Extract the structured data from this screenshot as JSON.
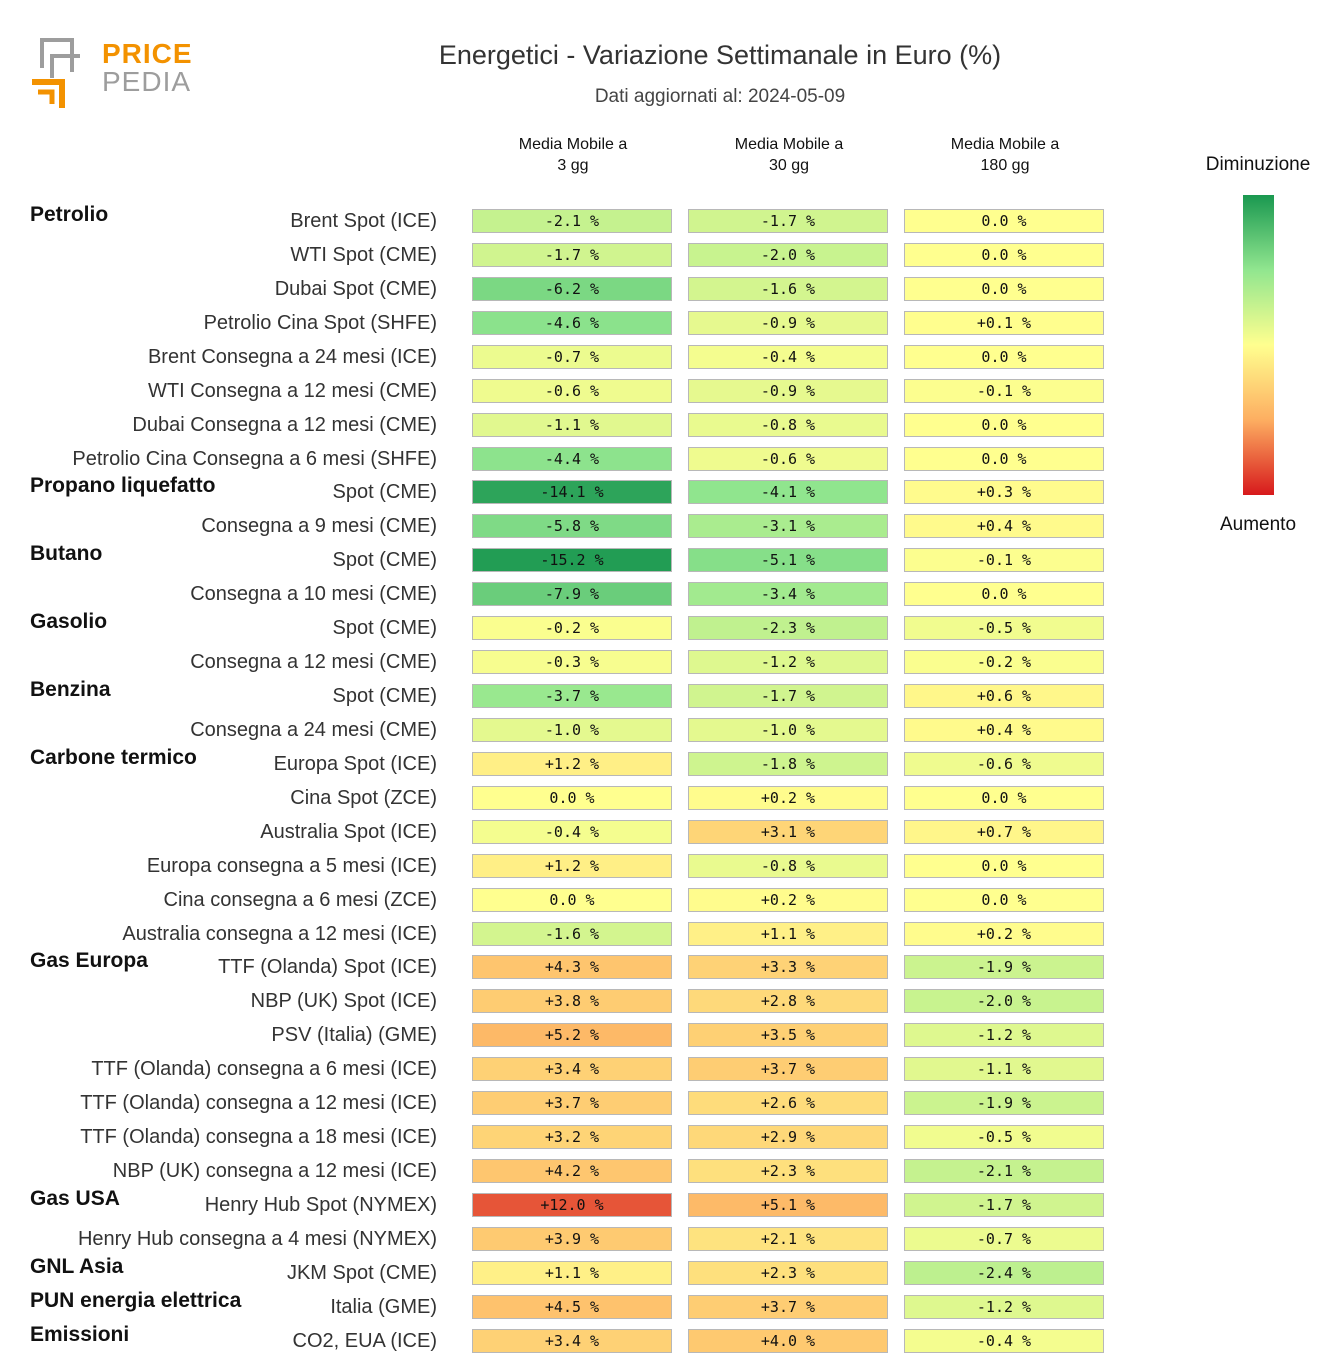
{
  "brand": {
    "line1": "PRICE",
    "line2": "PEDIA",
    "colors": {
      "orange": "#f39200",
      "gray": "#9d9d9d"
    }
  },
  "header": {
    "title": "Energetici - Variazione Settimanale in Euro (%)",
    "subtitle": "Dati aggiornati al: 2024-05-09"
  },
  "legend": {
    "top": "Diminuzione",
    "bottom": "Aumento",
    "colors": [
      "#1a9850",
      "#91e68f",
      "#ffff8f",
      "#fdae61",
      "#d7191c"
    ]
  },
  "chart_data": {
    "type": "heatmap",
    "title": "Energetici - Variazione Settimanale in Euro (%)",
    "columns": [
      {
        "line1": "Media Mobile a",
        "line2": "3 gg"
      },
      {
        "line1": "Media Mobile a",
        "line2": "30 gg"
      },
      {
        "line1": "Media Mobile a",
        "line2": "180 gg"
      }
    ],
    "value_suffix": " %",
    "groups": [
      {
        "name": "Petrolio",
        "rows": [
          {
            "label": "Brent Spot (ICE)",
            "values": [
              -2.1,
              -1.7,
              0.0
            ]
          },
          {
            "label": "WTI Spot (CME)",
            "values": [
              -1.7,
              -2.0,
              0.0
            ]
          },
          {
            "label": "Dubai Spot (CME)",
            "values": [
              -6.2,
              -1.6,
              0.0
            ]
          },
          {
            "label": "Petrolio Cina Spot (SHFE)",
            "values": [
              -4.6,
              -0.9,
              0.1
            ]
          },
          {
            "label": "Brent Consegna a 24 mesi (ICE)",
            "values": [
              -0.7,
              -0.4,
              0.0
            ]
          },
          {
            "label": "WTI Consegna a 12 mesi (CME)",
            "values": [
              -0.6,
              -0.9,
              -0.1
            ]
          },
          {
            "label": "Dubai Consegna a 12 mesi (CME)",
            "values": [
              -1.1,
              -0.8,
              0.0
            ]
          },
          {
            "label": "Petrolio Cina Consegna a 6 mesi (SHFE)",
            "values": [
              -4.4,
              -0.6,
              0.0
            ]
          }
        ]
      },
      {
        "name": "Propano liquefatto",
        "rows": [
          {
            "label": "Spot (CME)",
            "values": [
              -14.1,
              -4.1,
              0.3
            ]
          },
          {
            "label": "Consegna a 9 mesi (CME)",
            "values": [
              -5.8,
              -3.1,
              0.4
            ]
          }
        ]
      },
      {
        "name": "Butano",
        "rows": [
          {
            "label": "Spot (CME)",
            "values": [
              -15.2,
              -5.1,
              -0.1
            ]
          },
          {
            "label": "Consegna a 10 mesi (CME)",
            "values": [
              -7.9,
              -3.4,
              0.0
            ]
          }
        ]
      },
      {
        "name": "Gasolio",
        "rows": [
          {
            "label": "Spot (CME)",
            "values": [
              -0.2,
              -2.3,
              -0.5
            ]
          },
          {
            "label": "Consegna a 12 mesi (CME)",
            "values": [
              -0.3,
              -1.2,
              -0.2
            ]
          }
        ]
      },
      {
        "name": "Benzina",
        "rows": [
          {
            "label": "Spot (CME)",
            "values": [
              -3.7,
              -1.7,
              0.6
            ]
          },
          {
            "label": "Consegna a 24 mesi (CME)",
            "values": [
              -1.0,
              -1.0,
              0.4
            ]
          }
        ]
      },
      {
        "name": "Carbone termico",
        "rows": [
          {
            "label": "Europa Spot (ICE)",
            "values": [
              1.2,
              -1.8,
              -0.6
            ]
          },
          {
            "label": "Cina Spot (ZCE)",
            "values": [
              0.0,
              0.2,
              0.0
            ]
          },
          {
            "label": "Australia Spot (ICE)",
            "values": [
              -0.4,
              3.1,
              0.7
            ]
          },
          {
            "label": "Europa consegna a 5 mesi (ICE)",
            "values": [
              1.2,
              -0.8,
              0.0
            ]
          },
          {
            "label": "Cina consegna a 6 mesi (ZCE)",
            "values": [
              0.0,
              0.2,
              0.0
            ]
          },
          {
            "label": "Australia consegna a 12 mesi (ICE)",
            "values": [
              -1.6,
              1.1,
              0.2
            ]
          }
        ]
      },
      {
        "name": "Gas Europa",
        "rows": [
          {
            "label": "TTF (Olanda) Spot (ICE)",
            "values": [
              4.3,
              3.3,
              -1.9
            ]
          },
          {
            "label": "NBP (UK) Spot (ICE)",
            "values": [
              3.8,
              2.8,
              -2.0
            ]
          },
          {
            "label": "PSV (Italia) (GME)",
            "values": [
              5.2,
              3.5,
              -1.2
            ]
          },
          {
            "label": "TTF (Olanda) consegna a 6 mesi (ICE)",
            "values": [
              3.4,
              3.7,
              -1.1
            ]
          },
          {
            "label": "TTF (Olanda) consegna a 12 mesi (ICE)",
            "values": [
              3.7,
              2.6,
              -1.9
            ]
          },
          {
            "label": "TTF (Olanda) consegna a 18 mesi (ICE)",
            "values": [
              3.2,
              2.9,
              -0.5
            ]
          },
          {
            "label": "NBP (UK) consegna a 12 mesi (ICE)",
            "values": [
              4.2,
              2.3,
              -2.1
            ]
          }
        ]
      },
      {
        "name": "Gas USA",
        "rows": [
          {
            "label": "Henry Hub Spot (NYMEX)",
            "values": [
              12.0,
              5.1,
              -1.7
            ]
          },
          {
            "label": "Henry Hub consegna a 4 mesi (NYMEX)",
            "values": [
              3.9,
              2.1,
              -0.7
            ]
          }
        ]
      },
      {
        "name": "GNL Asia",
        "rows": [
          {
            "label": "JKM Spot (CME)",
            "values": [
              1.1,
              2.3,
              -2.4
            ]
          }
        ]
      },
      {
        "name": "PUN energia elettrica",
        "rows": [
          {
            "label": "Italia (GME)",
            "values": [
              4.5,
              3.7,
              -1.2
            ]
          }
        ]
      },
      {
        "name": "Emissioni",
        "rows": [
          {
            "label": "CO2, EUA (ICE)",
            "values": [
              3.4,
              4.0,
              -0.4
            ]
          }
        ]
      }
    ]
  }
}
